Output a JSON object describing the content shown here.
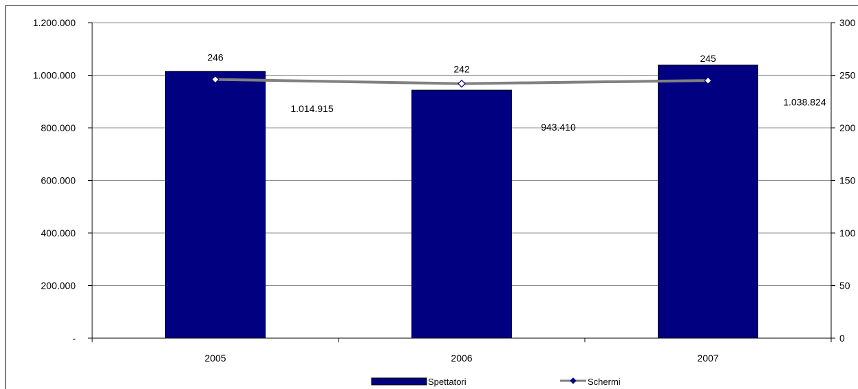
{
  "colors": {
    "bar_fill": "#000080",
    "bar_stroke": "#000000",
    "line": "#808080",
    "marker_fill": "#ffffff",
    "marker_stroke": "#000080",
    "grid": "#8c8c8c",
    "frame": "#000000"
  },
  "chart_data": {
    "type": "bar",
    "title": "",
    "xlabel": "",
    "ylabel": "",
    "grid": true,
    "legend_position": "bottom",
    "categories": [
      "2005",
      "2006",
      "2007"
    ],
    "ylim": [
      0,
      1200000
    ],
    "y2lim": [
      0,
      300
    ],
    "y_ticks": [
      "-",
      "200.000",
      "400.000",
      "600.000",
      "800.000",
      "1.000.000",
      "1.200.000"
    ],
    "y2_ticks": [
      "0",
      "50",
      "100",
      "150",
      "200",
      "250",
      "300"
    ],
    "series": [
      {
        "name": "Spettatori",
        "type": "bar",
        "axis": "left",
        "values": [
          1014915,
          943410,
          1038824
        ],
        "labels": [
          "1.014.915",
          "943.410",
          "1.038.824"
        ]
      },
      {
        "name": "Schermi",
        "type": "line",
        "axis": "right",
        "values": [
          246,
          242,
          245
        ],
        "labels": [
          "246",
          "242",
          "245"
        ]
      }
    ]
  }
}
